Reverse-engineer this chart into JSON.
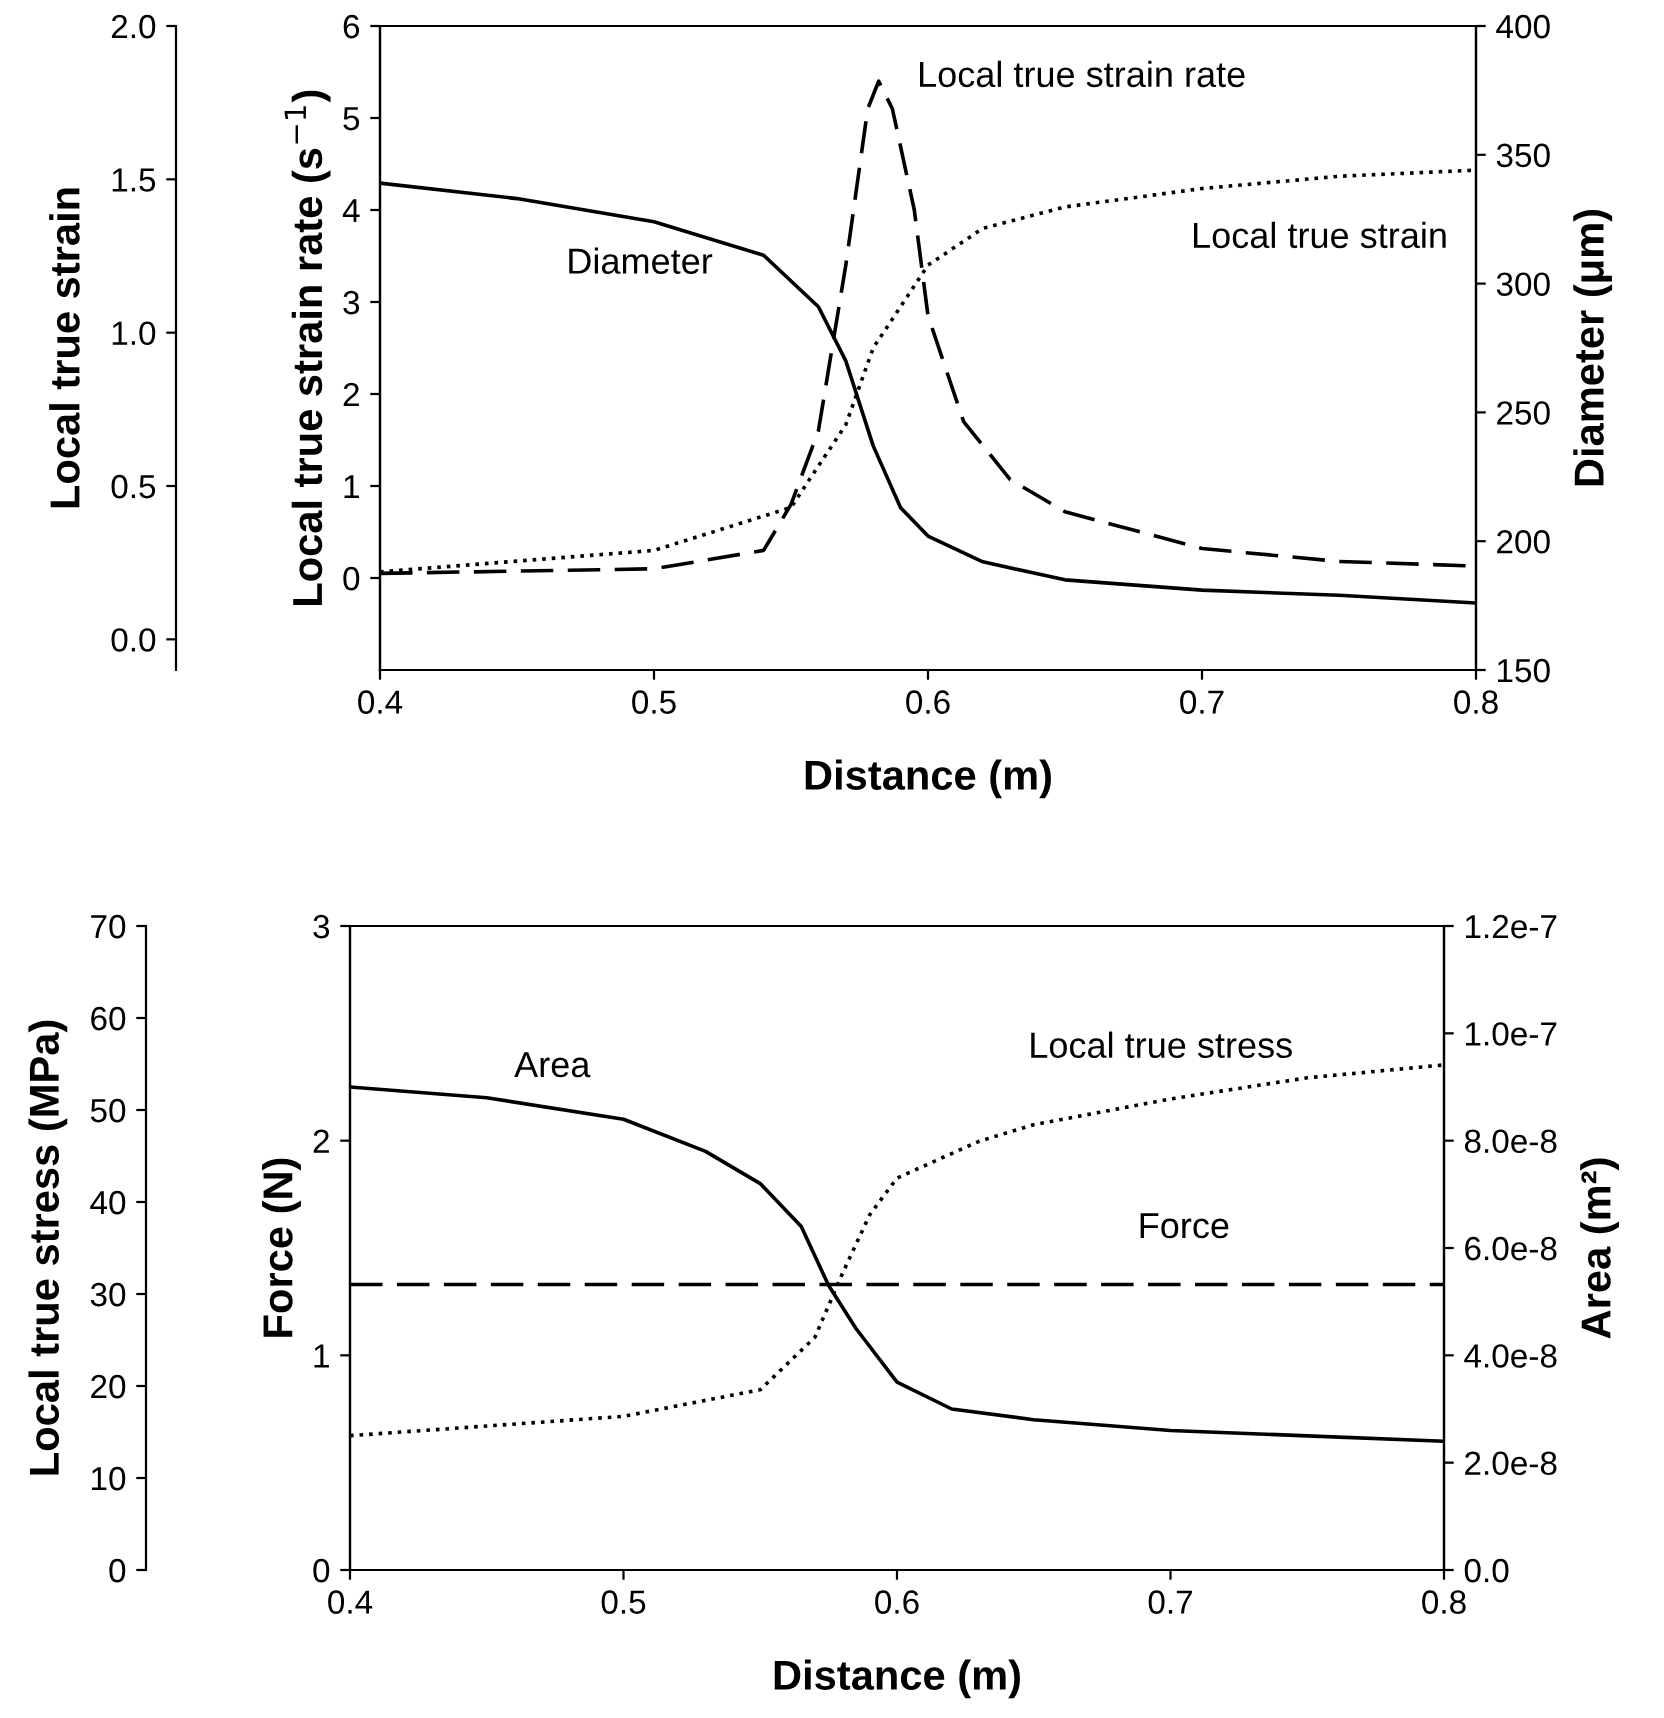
{
  "chart_data": [
    {
      "type": "line",
      "xlabel": "Distance (m)",
      "ylabel": "Local true strain rate (s$^{−1}$)",
      "y2label": "Diameter (μm)",
      "y3label": "Local true strain",
      "xlim": [
        0.4,
        0.8
      ],
      "xticks": [
        0.4,
        0.5,
        0.6,
        0.7,
        0.8
      ],
      "ylim": [
        -1,
        6
      ],
      "yticks": [
        0,
        1,
        2,
        3,
        4,
        5,
        6
      ],
      "y2lim": [
        150,
        400
      ],
      "y2ticks": [
        150,
        200,
        250,
        300,
        350,
        400
      ],
      "y3lim": [
        -0.1,
        2.0
      ],
      "y3ticks": [
        {
          "value": 0,
          "label": "0.0"
        },
        0.5,
        {
          "value": 1,
          "label": "1.0"
        },
        1.5,
        {
          "value": 2,
          "label": "2.0"
        }
      ],
      "grid": false,
      "legend": false,
      "marker": "none",
      "series": [
        {
          "name": "Diameter",
          "axis": "y2",
          "color": "#000000",
          "line_style": "solid",
          "x": [
            0.4,
            0.45,
            0.5,
            0.54,
            0.56,
            0.57,
            0.58,
            0.59,
            0.6,
            0.62,
            0.65,
            0.7,
            0.75,
            0.8
          ],
          "values": [
            339,
            333,
            324,
            311,
            291,
            270,
            237,
            213,
            202,
            192,
            185,
            181,
            179,
            176
          ]
        },
        {
          "name": "Local true strain rate",
          "axis": "y",
          "color": "#000000",
          "line_style": "dashed",
          "x": [
            0.4,
            0.5,
            0.54,
            0.55,
            0.56,
            0.57,
            0.578,
            0.582,
            0.587,
            0.595,
            0.6,
            0.613,
            0.63,
            0.65,
            0.7,
            0.75,
            0.8
          ],
          "values": [
            0.05,
            0.1,
            0.3,
            0.8,
            1.6,
            3.4,
            5.1,
            5.4,
            5.1,
            4.0,
            2.85,
            1.7,
            1.07,
            0.72,
            0.32,
            0.18,
            0.13
          ]
        },
        {
          "name": "Local true strain",
          "axis": "y3",
          "color": "#000000",
          "line_style": "dotted",
          "x": [
            0.4,
            0.5,
            0.55,
            0.57,
            0.58,
            0.6,
            0.62,
            0.65,
            0.7,
            0.75,
            0.8
          ],
          "values": [
            0.22,
            0.29,
            0.43,
            0.7,
            0.95,
            1.22,
            1.34,
            1.41,
            1.47,
            1.51,
            1.53
          ]
        }
      ]
    },
    {
      "type": "line",
      "xlabel": "Distance (m)",
      "ylabel": "Force (N)",
      "y2label": "Area (m²)",
      "y3label": "Local true stress (MPa)",
      "xlim": [
        0.4,
        0.8
      ],
      "xticks": [
        0.4,
        0.5,
        0.6,
        0.7,
        0.8
      ],
      "ylim": [
        0,
        3
      ],
      "yticks": [
        0,
        1,
        2,
        3
      ],
      "y2lim": [
        0,
        1.2e-07
      ],
      "y2ticks": [
        {
          "value": 0,
          "label": "0.0"
        },
        {
          "value": 2e-08,
          "label": "2.0e-8"
        },
        {
          "value": 4e-08,
          "label": "4.0e-8"
        },
        {
          "value": 6e-08,
          "label": "6.0e-8"
        },
        {
          "value": 8e-08,
          "label": "8.0e-8"
        },
        {
          "value": 1e-07,
          "label": "1.0e-7"
        },
        {
          "value": 1.2e-07,
          "label": "1.2e-7"
        }
      ],
      "y3lim": [
        0,
        70
      ],
      "y3ticks": [
        0,
        10,
        20,
        30,
        40,
        50,
        60,
        70
      ],
      "grid": false,
      "legend": false,
      "marker": "none",
      "series": [
        {
          "name": "Area",
          "axis": "y2",
          "color": "#000000",
          "line_style": "solid",
          "x": [
            0.4,
            0.45,
            0.5,
            0.53,
            0.55,
            0.565,
            0.575,
            0.585,
            0.6,
            0.62,
            0.65,
            0.7,
            0.75,
            0.8
          ],
          "values": [
            9e-08,
            8.8e-08,
            8.4e-08,
            7.8e-08,
            7.2e-08,
            6.4e-08,
            5.3e-08,
            4.5e-08,
            3.5e-08,
            3e-08,
            2.8e-08,
            2.6e-08,
            2.5e-08,
            2.4e-08
          ]
        },
        {
          "name": "Local true stress",
          "axis": "y3",
          "color": "#000000",
          "line_style": "dotted",
          "x": [
            0.4,
            0.5,
            0.55,
            0.57,
            0.58,
            0.59,
            0.6,
            0.63,
            0.65,
            0.7,
            0.75,
            0.8
          ],
          "values": [
            14.6,
            16.7,
            19.6,
            25.3,
            32.2,
            38.6,
            42.6,
            46.6,
            48.4,
            51.2,
            53.5,
            54.9
          ]
        },
        {
          "name": "Force",
          "axis": "y",
          "color": "#000000",
          "line_style": "dashed",
          "x": [
            0.4,
            0.8
          ],
          "values": [
            1.33,
            1.33
          ]
        }
      ]
    }
  ]
}
